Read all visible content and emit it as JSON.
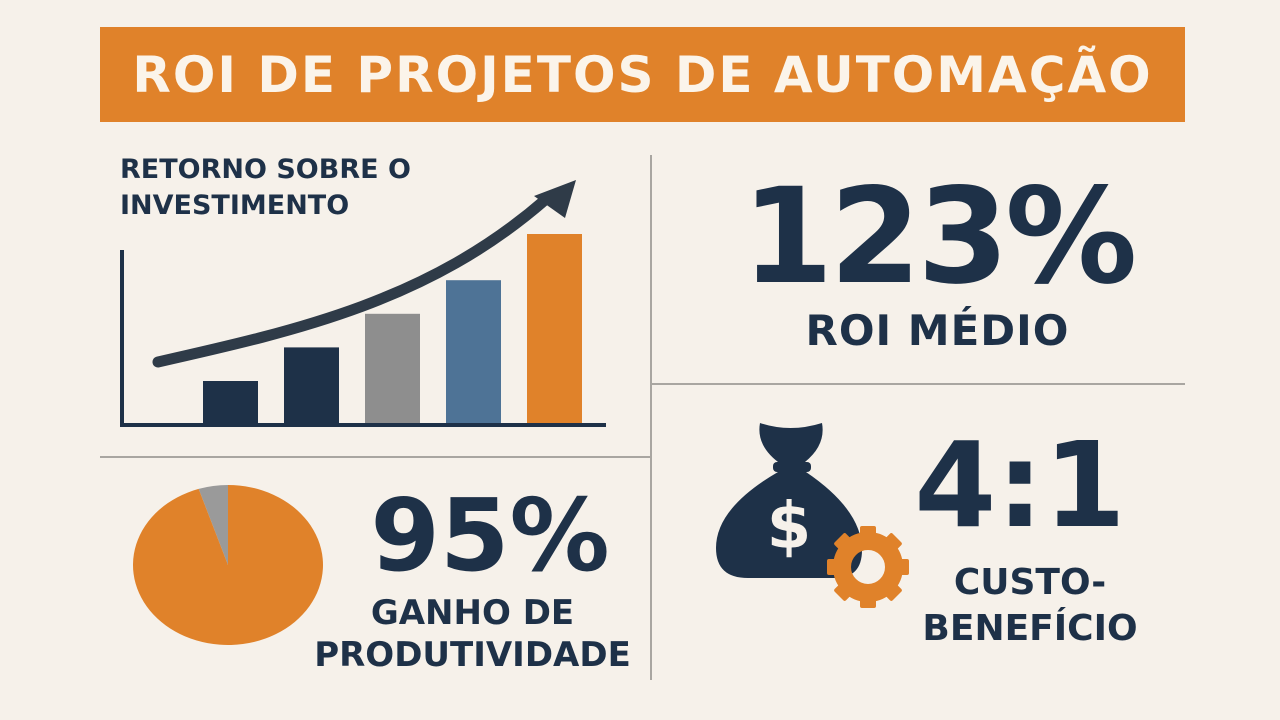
{
  "header": {
    "title": "ROI DE PROJETOS DE AUTOMAÇÃO"
  },
  "roi_chart": {
    "label_line1": "RETORNO SOBRE O",
    "label_line2": "INVESTIMENTO"
  },
  "roi_stat": {
    "value": "123%",
    "label": "ROI MÉDIO"
  },
  "productivity": {
    "value": "95%",
    "label_line1": "GANHO DE",
    "label_line2": "PRODUTIVIDADE",
    "pie_fraction_orange": 0.95
  },
  "cost_benefit": {
    "value": "4:1",
    "label_line1": "CUSTO-",
    "label_line2": "BENEFÍCIO",
    "icons": [
      "money-bag-icon",
      "gear-icon"
    ]
  },
  "chart_data": {
    "type": "bar",
    "categories": [
      "",
      "",
      "",
      "",
      ""
    ],
    "values": [
      1,
      1.8,
      2.6,
      3.4,
      4.5
    ],
    "colors": [
      "#1e3148",
      "#1e3148",
      "#8e8e8e",
      "#4e7396",
      "#e0822a"
    ],
    "ylim": [
      0,
      5
    ],
    "trend_arrow": true,
    "grid": false
  },
  "colors": {
    "accent": "#e0822a",
    "navy": "#1e3148",
    "gray": "#8e8e8e",
    "background": "#f6f1ea"
  }
}
